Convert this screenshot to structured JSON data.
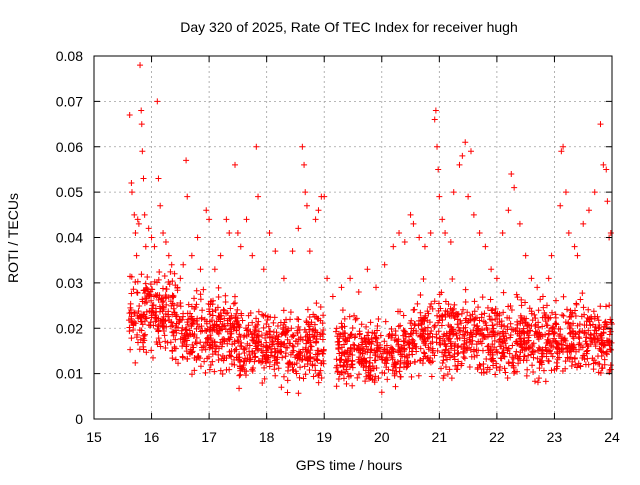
{
  "chart_data": {
    "type": "scatter",
    "title": "Day 320 of 2025, Rate Of TEC Index for receiver hugh",
    "xlabel": "GPS time / hours",
    "ylabel": "ROTI / TECUs",
    "xlim": [
      15,
      24
    ],
    "ylim": [
      0,
      0.08
    ],
    "xticks": [
      15,
      16,
      17,
      18,
      19,
      20,
      21,
      22,
      23,
      24
    ],
    "yticks": [
      0,
      0.01,
      0.02,
      0.03,
      0.04,
      0.05,
      0.06,
      0.07,
      0.08
    ],
    "ytick_labels": [
      "0",
      "0.01",
      "0.02",
      "0.03",
      "0.04",
      "0.05",
      "0.06",
      "0.07",
      "0.08"
    ],
    "grid": true,
    "marker": "plus",
    "series": [
      {
        "color": "#ff0000",
        "points": [
          [
            15.62,
            0.067
          ],
          [
            15.65,
            0.052
          ],
          [
            15.66,
            0.05
          ],
          [
            15.7,
            0.045
          ],
          [
            15.72,
            0.041
          ],
          [
            15.74,
            0.036
          ],
          [
            15.76,
            0.044
          ],
          [
            15.78,
            0.043
          ],
          [
            15.8,
            0.078
          ],
          [
            15.82,
            0.068
          ],
          [
            15.83,
            0.065
          ],
          [
            15.84,
            0.059
          ],
          [
            15.86,
            0.053
          ],
          [
            15.88,
            0.045
          ],
          [
            15.9,
            0.038
          ],
          [
            15.95,
            0.042
          ],
          [
            16.0,
            0.04
          ],
          [
            16.05,
            0.038
          ],
          [
            16.1,
            0.07
          ],
          [
            16.12,
            0.053
          ],
          [
            16.15,
            0.047
          ],
          [
            16.2,
            0.041
          ],
          [
            16.25,
            0.039
          ],
          [
            16.3,
            0.036
          ],
          [
            16.35,
            0.034
          ],
          [
            16.4,
            0.032
          ],
          [
            16.45,
            0.029
          ],
          [
            16.5,
            0.031
          ],
          [
            16.55,
            0.034
          ],
          [
            16.6,
            0.057
          ],
          [
            16.62,
            0.049
          ],
          [
            16.7,
            0.036
          ],
          [
            16.8,
            0.04
          ],
          [
            16.85,
            0.033
          ],
          [
            16.95,
            0.046
          ],
          [
            17.0,
            0.044
          ],
          [
            17.1,
            0.033
          ],
          [
            17.2,
            0.036
          ],
          [
            17.3,
            0.044
          ],
          [
            17.35,
            0.041
          ],
          [
            17.45,
            0.056
          ],
          [
            17.5,
            0.041
          ],
          [
            17.55,
            0.038
          ],
          [
            17.65,
            0.044
          ],
          [
            17.75,
            0.036
          ],
          [
            17.82,
            0.06
          ],
          [
            17.85,
            0.049
          ],
          [
            17.95,
            0.033
          ],
          [
            18.05,
            0.041
          ],
          [
            18.15,
            0.037
          ],
          [
            18.3,
            0.031
          ],
          [
            18.45,
            0.037
          ],
          [
            18.55,
            0.042
          ],
          [
            18.62,
            0.06
          ],
          [
            18.65,
            0.056
          ],
          [
            18.67,
            0.05
          ],
          [
            18.7,
            0.047
          ],
          [
            18.75,
            0.037
          ],
          [
            18.85,
            0.044
          ],
          [
            18.9,
            0.046
          ],
          [
            18.95,
            0.049
          ],
          [
            19.0,
            0.049
          ],
          [
            19.05,
            0.031
          ],
          [
            19.15,
            0.027
          ],
          [
            19.3,
            0.029
          ],
          [
            19.45,
            0.031
          ],
          [
            19.6,
            0.028
          ],
          [
            19.75,
            0.033
          ],
          [
            19.9,
            0.029
          ],
          [
            20.05,
            0.034
          ],
          [
            20.2,
            0.038
          ],
          [
            20.3,
            0.041
          ],
          [
            20.4,
            0.039
          ],
          [
            20.5,
            0.045
          ],
          [
            20.55,
            0.043
          ],
          [
            20.65,
            0.04
          ],
          [
            20.75,
            0.038
          ],
          [
            20.85,
            0.041
          ],
          [
            20.92,
            0.066
          ],
          [
            20.94,
            0.068
          ],
          [
            20.96,
            0.06
          ],
          [
            20.98,
            0.055
          ],
          [
            21.0,
            0.049
          ],
          [
            21.05,
            0.044
          ],
          [
            21.1,
            0.041
          ],
          [
            21.2,
            0.039
          ],
          [
            21.25,
            0.05
          ],
          [
            21.35,
            0.056
          ],
          [
            21.4,
            0.058
          ],
          [
            21.45,
            0.061
          ],
          [
            21.5,
            0.049
          ],
          [
            21.55,
            0.059
          ],
          [
            21.6,
            0.045
          ],
          [
            21.7,
            0.041
          ],
          [
            21.8,
            0.038
          ],
          [
            21.9,
            0.033
          ],
          [
            22.0,
            0.031
          ],
          [
            22.1,
            0.041
          ],
          [
            22.2,
            0.046
          ],
          [
            22.25,
            0.054
          ],
          [
            22.3,
            0.051
          ],
          [
            22.4,
            0.043
          ],
          [
            22.5,
            0.036
          ],
          [
            22.6,
            0.031
          ],
          [
            22.7,
            0.029
          ],
          [
            22.8,
            0.027
          ],
          [
            22.9,
            0.031
          ],
          [
            22.95,
            0.036
          ],
          [
            23.1,
            0.047
          ],
          [
            23.12,
            0.059
          ],
          [
            23.15,
            0.06
          ],
          [
            23.2,
            0.05
          ],
          [
            23.25,
            0.041
          ],
          [
            23.35,
            0.038
          ],
          [
            23.4,
            0.036
          ],
          [
            23.5,
            0.043
          ],
          [
            23.6,
            0.046
          ],
          [
            23.7,
            0.05
          ],
          [
            23.8,
            0.065
          ],
          [
            23.85,
            0.056
          ],
          [
            23.9,
            0.055
          ],
          [
            23.92,
            0.048
          ],
          [
            23.95,
            0.04
          ],
          [
            23.98,
            0.041
          ]
        ]
      }
    ],
    "dense_bands": [
      {
        "x": [
          15.6,
          16.4
        ],
        "y": [
          0.012,
          0.035
        ]
      },
      {
        "x": [
          16.4,
          17.5
        ],
        "y": [
          0.01,
          0.03
        ]
      },
      {
        "x": [
          17.5,
          19.0
        ],
        "y": [
          0.007,
          0.026
        ]
      },
      {
        "x": [
          19.2,
          20.5
        ],
        "y": [
          0.006,
          0.025
        ]
      },
      {
        "x": [
          20.5,
          22.0
        ],
        "y": [
          0.008,
          0.03
        ]
      },
      {
        "x": [
          22.0,
          24.0
        ],
        "y": [
          0.008,
          0.028
        ]
      }
    ]
  }
}
